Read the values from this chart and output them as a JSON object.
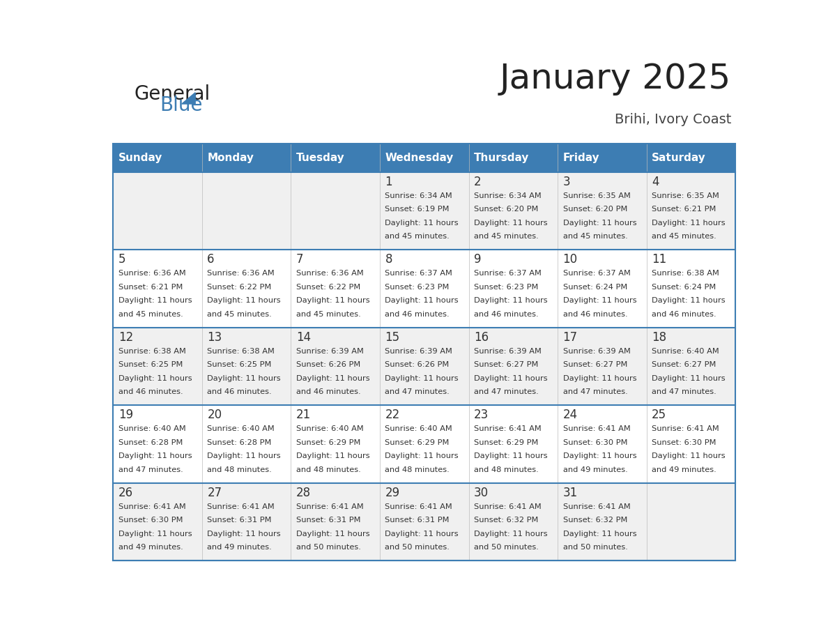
{
  "title": "January 2025",
  "subtitle": "Brihi, Ivory Coast",
  "days_of_week": [
    "Sunday",
    "Monday",
    "Tuesday",
    "Wednesday",
    "Thursday",
    "Friday",
    "Saturday"
  ],
  "header_bg": "#3d7db3",
  "header_text": "#ffffff",
  "row_bg_odd": "#f0f0f0",
  "row_bg_even": "#ffffff",
  "cell_border": "#3d7db3",
  "cell_border_light": "#bbbbbb",
  "day_num_color": "#333333",
  "info_text_color": "#333333",
  "calendar": [
    [
      {
        "day": null,
        "sunrise": null,
        "sunset": null,
        "daylight": null
      },
      {
        "day": null,
        "sunrise": null,
        "sunset": null,
        "daylight": null
      },
      {
        "day": null,
        "sunrise": null,
        "sunset": null,
        "daylight": null
      },
      {
        "day": 1,
        "sunrise": "6:34 AM",
        "sunset": "6:19 PM",
        "daylight": "11 hours and 45 minutes."
      },
      {
        "day": 2,
        "sunrise": "6:34 AM",
        "sunset": "6:20 PM",
        "daylight": "11 hours and 45 minutes."
      },
      {
        "day": 3,
        "sunrise": "6:35 AM",
        "sunset": "6:20 PM",
        "daylight": "11 hours and 45 minutes."
      },
      {
        "day": 4,
        "sunrise": "6:35 AM",
        "sunset": "6:21 PM",
        "daylight": "11 hours and 45 minutes."
      }
    ],
    [
      {
        "day": 5,
        "sunrise": "6:36 AM",
        "sunset": "6:21 PM",
        "daylight": "11 hours and 45 minutes."
      },
      {
        "day": 6,
        "sunrise": "6:36 AM",
        "sunset": "6:22 PM",
        "daylight": "11 hours and 45 minutes."
      },
      {
        "day": 7,
        "sunrise": "6:36 AM",
        "sunset": "6:22 PM",
        "daylight": "11 hours and 45 minutes."
      },
      {
        "day": 8,
        "sunrise": "6:37 AM",
        "sunset": "6:23 PM",
        "daylight": "11 hours and 46 minutes."
      },
      {
        "day": 9,
        "sunrise": "6:37 AM",
        "sunset": "6:23 PM",
        "daylight": "11 hours and 46 minutes."
      },
      {
        "day": 10,
        "sunrise": "6:37 AM",
        "sunset": "6:24 PM",
        "daylight": "11 hours and 46 minutes."
      },
      {
        "day": 11,
        "sunrise": "6:38 AM",
        "sunset": "6:24 PM",
        "daylight": "11 hours and 46 minutes."
      }
    ],
    [
      {
        "day": 12,
        "sunrise": "6:38 AM",
        "sunset": "6:25 PM",
        "daylight": "11 hours and 46 minutes."
      },
      {
        "day": 13,
        "sunrise": "6:38 AM",
        "sunset": "6:25 PM",
        "daylight": "11 hours and 46 minutes."
      },
      {
        "day": 14,
        "sunrise": "6:39 AM",
        "sunset": "6:26 PM",
        "daylight": "11 hours and 46 minutes."
      },
      {
        "day": 15,
        "sunrise": "6:39 AM",
        "sunset": "6:26 PM",
        "daylight": "11 hours and 47 minutes."
      },
      {
        "day": 16,
        "sunrise": "6:39 AM",
        "sunset": "6:27 PM",
        "daylight": "11 hours and 47 minutes."
      },
      {
        "day": 17,
        "sunrise": "6:39 AM",
        "sunset": "6:27 PM",
        "daylight": "11 hours and 47 minutes."
      },
      {
        "day": 18,
        "sunrise": "6:40 AM",
        "sunset": "6:27 PM",
        "daylight": "11 hours and 47 minutes."
      }
    ],
    [
      {
        "day": 19,
        "sunrise": "6:40 AM",
        "sunset": "6:28 PM",
        "daylight": "11 hours and 47 minutes."
      },
      {
        "day": 20,
        "sunrise": "6:40 AM",
        "sunset": "6:28 PM",
        "daylight": "11 hours and 48 minutes."
      },
      {
        "day": 21,
        "sunrise": "6:40 AM",
        "sunset": "6:29 PM",
        "daylight": "11 hours and 48 minutes."
      },
      {
        "day": 22,
        "sunrise": "6:40 AM",
        "sunset": "6:29 PM",
        "daylight": "11 hours and 48 minutes."
      },
      {
        "day": 23,
        "sunrise": "6:41 AM",
        "sunset": "6:29 PM",
        "daylight": "11 hours and 48 minutes."
      },
      {
        "day": 24,
        "sunrise": "6:41 AM",
        "sunset": "6:30 PM",
        "daylight": "11 hours and 49 minutes."
      },
      {
        "day": 25,
        "sunrise": "6:41 AM",
        "sunset": "6:30 PM",
        "daylight": "11 hours and 49 minutes."
      }
    ],
    [
      {
        "day": 26,
        "sunrise": "6:41 AM",
        "sunset": "6:30 PM",
        "daylight": "11 hours and 49 minutes."
      },
      {
        "day": 27,
        "sunrise": "6:41 AM",
        "sunset": "6:31 PM",
        "daylight": "11 hours and 49 minutes."
      },
      {
        "day": 28,
        "sunrise": "6:41 AM",
        "sunset": "6:31 PM",
        "daylight": "11 hours and 50 minutes."
      },
      {
        "day": 29,
        "sunrise": "6:41 AM",
        "sunset": "6:31 PM",
        "daylight": "11 hours and 50 minutes."
      },
      {
        "day": 30,
        "sunrise": "6:41 AM",
        "sunset": "6:32 PM",
        "daylight": "11 hours and 50 minutes."
      },
      {
        "day": 31,
        "sunrise": "6:41 AM",
        "sunset": "6:32 PM",
        "daylight": "11 hours and 50 minutes."
      },
      {
        "day": null,
        "sunrise": null,
        "sunset": null,
        "daylight": null
      }
    ]
  ]
}
